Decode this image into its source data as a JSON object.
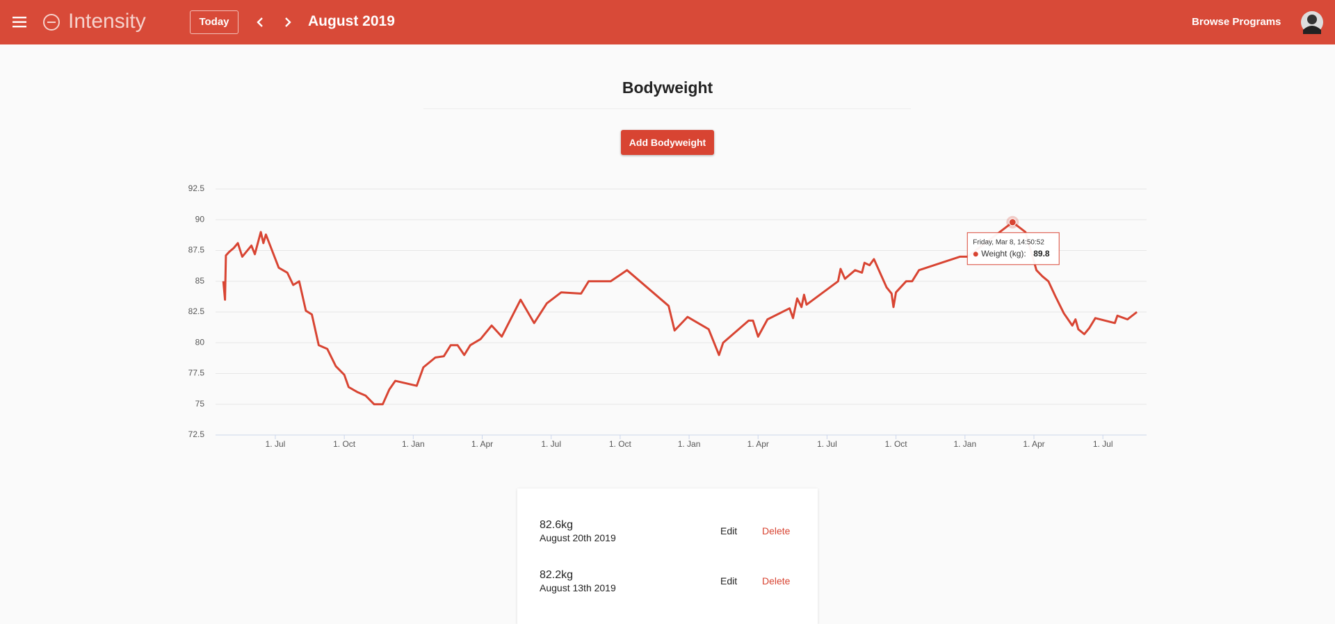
{
  "header": {
    "brand": "Intensity",
    "today": "Today",
    "month": "August 2019",
    "browse": "Browse Programs"
  },
  "page": {
    "title": "Bodyweight",
    "add_button": "Add Bodyweight"
  },
  "chart_data": {
    "type": "line",
    "color": "#d84432",
    "grid": true,
    "x": [
      -2.26,
      -2.19,
      -2.15,
      -2.0,
      -1.81,
      -1.63,
      -1.44,
      -1.04,
      -0.89,
      -0.63,
      -0.52,
      -0.41,
      0.15,
      0.52,
      0.78,
      1.04,
      1.33,
      1.59,
      1.89,
      2.26,
      2.63,
      3.0,
      3.19,
      3.56,
      3.93,
      4.3,
      4.67,
      4.96,
      5.22,
      6.15,
      6.44,
      6.96,
      7.33,
      7.63,
      7.93,
      8.22,
      8.48,
      8.93,
      9.41,
      9.85,
      10.67,
      11.26,
      11.81,
      12.44,
      13.3,
      13.63,
      14.59,
      15.3,
      17.11,
      17.37,
      17.93,
      18.85,
      19.3,
      19.48,
      20.59,
      20.78,
      21.0,
      21.41,
      22.37,
      22.52,
      22.7,
      22.89,
      23.0,
      23.11,
      24.48,
      24.59,
      24.78,
      25.22,
      25.52,
      25.63,
      25.85,
      26.04,
      26.59,
      26.81,
      26.89,
      27.0,
      27.44,
      27.7,
      28.0,
      29.78,
      30.11,
      32.07,
      32.63,
      33.11,
      33.37,
      33.63,
      33.93,
      34.3,
      34.67,
      34.81,
      34.93,
      35.19,
      35.41,
      35.67,
      36.52,
      36.63,
      37.07,
      37.48
    ],
    "values": [
      85.0,
      83.5,
      87.1,
      87.4,
      87.7,
      88.1,
      87.0,
      87.9,
      87.2,
      89.0,
      88.1,
      88.8,
      86.1,
      85.7,
      84.7,
      85.0,
      82.6,
      82.3,
      79.8,
      79.5,
      78.1,
      77.4,
      76.4,
      76.0,
      75.7,
      75.0,
      75.0,
      76.2,
      76.9,
      76.5,
      78.0,
      78.8,
      78.9,
      79.8,
      79.8,
      79.0,
      79.8,
      80.3,
      81.4,
      80.5,
      83.5,
      81.6,
      83.2,
      84.1,
      84.0,
      85.0,
      85.0,
      85.9,
      83.0,
      81.0,
      82.1,
      81.1,
      79.0,
      80.0,
      81.8,
      81.8,
      80.5,
      81.9,
      82.8,
      82.0,
      83.6,
      82.9,
      83.9,
      83.1,
      85.0,
      86.0,
      85.2,
      85.9,
      85.7,
      86.5,
      86.3,
      86.8,
      84.5,
      84.0,
      82.9,
      84.1,
      85.0,
      85.0,
      85.9,
      87.0,
      87.0,
      89.8,
      89.0,
      85.9,
      85.4,
      85.0,
      83.8,
      82.4,
      81.4,
      81.9,
      81.1,
      80.7,
      81.2,
      82.0,
      81.6,
      82.2,
      81.9,
      82.5
    ],
    "xlim": [
      -2.6,
      37.9
    ],
    "xticks": [
      {
        "value": 0,
        "label": "1. Jul"
      },
      {
        "value": 3,
        "label": "1. Oct"
      },
      {
        "value": 6,
        "label": "1. Jan"
      },
      {
        "value": 9,
        "label": "1. Apr"
      },
      {
        "value": 12,
        "label": "1. Jul"
      },
      {
        "value": 15,
        "label": "1. Oct"
      },
      {
        "value": 18,
        "label": "1. Jan"
      },
      {
        "value": 21,
        "label": "1. Apr"
      },
      {
        "value": 24,
        "label": "1. Jul"
      },
      {
        "value": 27,
        "label": "1. Oct"
      },
      {
        "value": 30,
        "label": "1. Jan"
      },
      {
        "value": 33,
        "label": "1. Apr"
      },
      {
        "value": 36,
        "label": "1. Jul"
      }
    ],
    "ylim": [
      72.5,
      92.5
    ],
    "yticks": [
      72.5,
      75,
      77.5,
      80,
      82.5,
      85,
      87.5,
      90,
      92.5
    ],
    "tooltip": {
      "index": 81,
      "date": "Friday, Mar 8, 14:50:52",
      "label": "Weight (kg):",
      "value": 89.8
    }
  },
  "entries": [
    {
      "weight": "82.6kg",
      "date": "August 20th 2019",
      "edit": "Edit",
      "delete": "Delete"
    },
    {
      "weight": "82.2kg",
      "date": "August 13th 2019",
      "edit": "Edit",
      "delete": "Delete"
    }
  ]
}
